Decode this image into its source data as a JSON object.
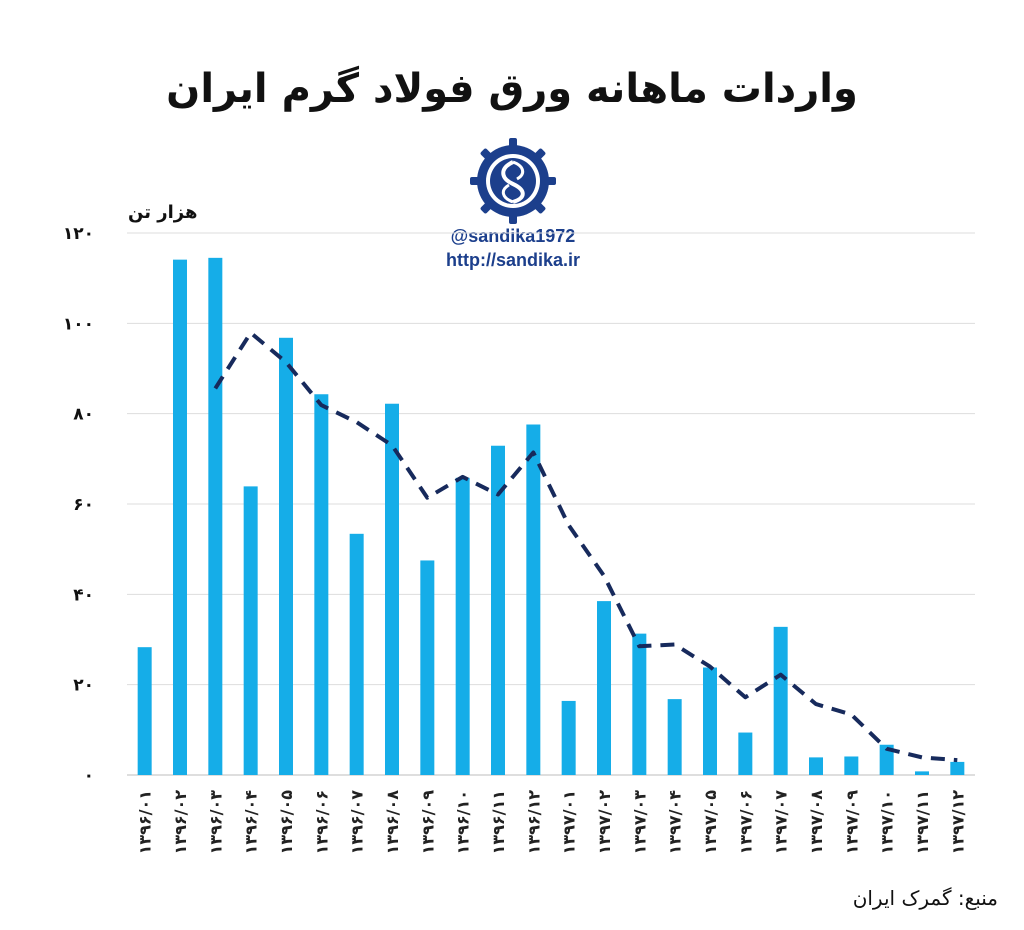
{
  "title": "واردات ماهانه ورق فولاد گرم ایران",
  "watermark": {
    "handle": "@sandika1972",
    "url": "http://sandika.ir",
    "logo_icon": "sandika-gear-logo-icon"
  },
  "source": "منبع: گمرک ایران",
  "colors": {
    "bar": "#15ade8",
    "trend": "#172a5c",
    "grid": "#dddddd",
    "logo": "#1c3f8c"
  },
  "chart_data": {
    "type": "bar",
    "title": "واردات ماهانه ورق فولاد گرم ایران",
    "ylabel": "هزار تن",
    "ylim": [
      0,
      120
    ],
    "yticks": [
      0,
      20,
      40,
      60,
      80,
      100,
      120
    ],
    "ytick_labels": [
      "۰",
      "۲۰",
      "۴۰",
      "۶۰",
      "۸۰",
      "۱۰۰",
      "۱۲۰"
    ],
    "grid": true,
    "categories": [
      "۱۳۹۶/۰۱",
      "۱۳۹۶/۰۲",
      "۱۳۹۶/۰۳",
      "۱۳۹۶/۰۴",
      "۱۳۹۶/۰۵",
      "۱۳۹۶/۰۶",
      "۱۳۹۶/۰۷",
      "۱۳۹۶/۰۸",
      "۱۳۹۶/۰۹",
      "۱۳۹۶/۱۰",
      "۱۳۹۶/۱۱",
      "۱۳۹۶/۱۲",
      "۱۳۹۷/۰۱",
      "۱۳۹۷/۰۲",
      "۱۳۹۷/۰۳",
      "۱۳۹۷/۰۴",
      "۱۳۹۷/۰۵",
      "۱۳۹۷/۰۶",
      "۱۳۹۷/۰۷",
      "۱۳۹۷/۰۸",
      "۱۳۹۷/۰۹",
      "۱۳۹۷/۱۰",
      "۱۳۹۷/۱۱",
      "۱۳۹۷/۱۲"
    ],
    "series": [
      {
        "type": "bar",
        "values": [
          28.3,
          114.1,
          114.5,
          63.9,
          96.8,
          84.3,
          53.4,
          82.2,
          47.5,
          65.8,
          72.9,
          77.6,
          16.4,
          38.5,
          31.3,
          16.8,
          23.8,
          9.4,
          32.8,
          3.9,
          4.1,
          6.7,
          0.8,
          2.9
        ]
      },
      {
        "type": "line",
        "style": "dashed",
        "values": [
          null,
          null,
          85.6,
          97.9,
          91.4,
          81.9,
          78.1,
          73.0,
          61.4,
          66.0,
          62.1,
          71.4,
          55.3,
          44.1,
          28.5,
          28.9,
          24.0,
          17.2,
          22.2,
          15.7,
          13.4,
          5.8,
          3.9,
          3.3
        ]
      }
    ]
  }
}
